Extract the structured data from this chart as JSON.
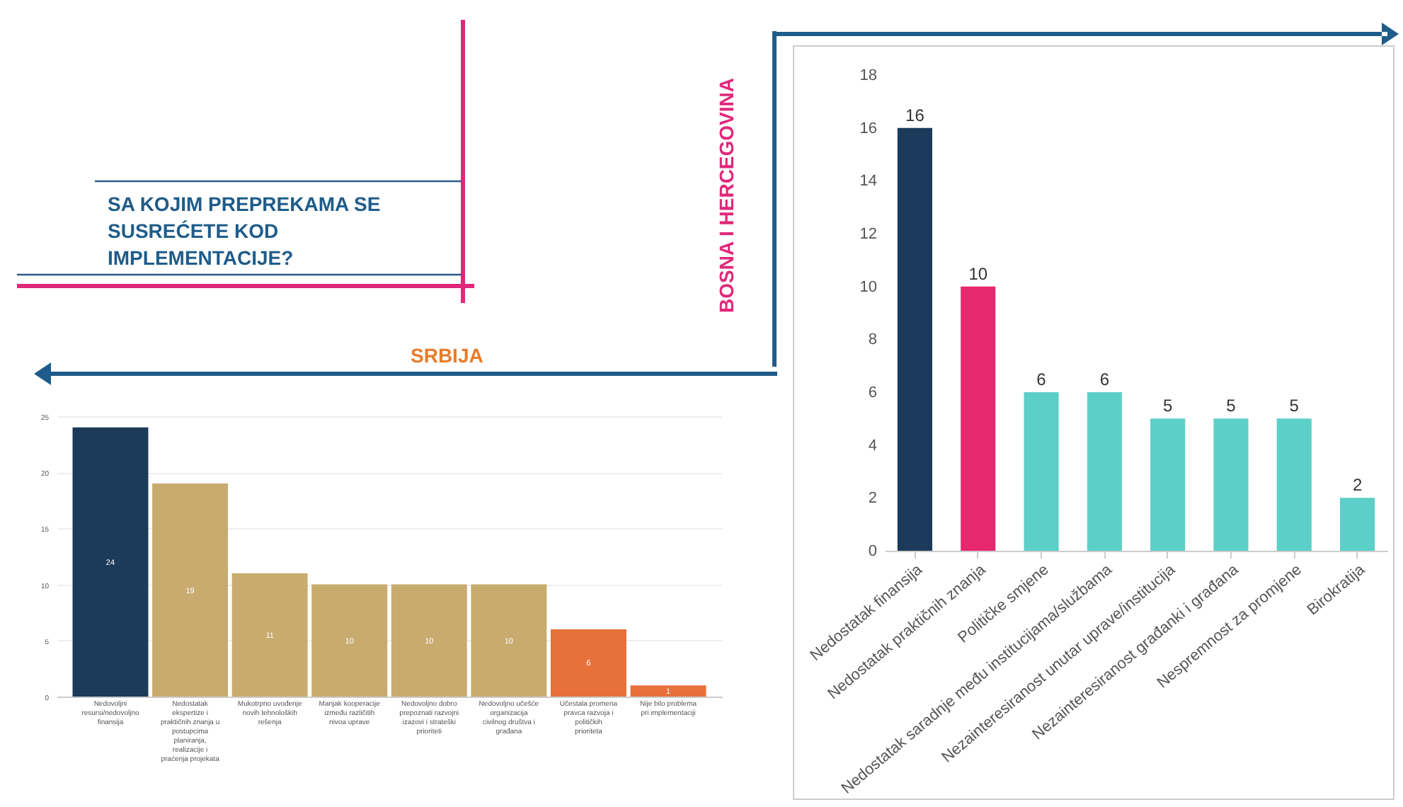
{
  "chart_data": [
    {
      "type": "other",
      "title": "SA KOJIM PREPREKAMA SE SUSREĆETE KOD IMPLEMENTACIJE?"
    },
    {
      "type": "bar",
      "title": "BOSNA I HERCEGOVINA",
      "categories": [
        "Nedostatak finansija",
        "Nedostatak praktičnih znanja",
        "Političke smjene",
        "Nedostatak saradnje među institucijama/službama",
        "Nezainteresiranost unutar uprave/institucija",
        "Nezainteresiranost građanki i građana",
        "Nespremnost za promjene",
        "Birokratija"
      ],
      "values": [
        16,
        10,
        6,
        6,
        5,
        5,
        5,
        2
      ],
      "colors": [
        "#1b3a5c",
        "#e8286e",
        "#5ccfc8",
        "#5ccfc8",
        "#5ccfc8",
        "#5ccfc8",
        "#5ccfc8",
        "#5ccfc8"
      ],
      "ylim": [
        0,
        18
      ],
      "yticks": [
        0,
        2,
        4,
        6,
        8,
        10,
        12,
        14,
        16,
        18
      ],
      "data_labels": true
    },
    {
      "type": "bar",
      "title": "SRBIJA",
      "categories": [
        "Nedovoljni resursi/nedovoljno finansija",
        "Nedostatak ekspertize i praktičnih znanja u postupcima planiranja, realizacije i praćenja projekata",
        "Mukotrpno uvođenje novih tehnoloških rešenja",
        "Manjak kooperacije između različitih nivoa uprave",
        "Nedovoljno dobro prepoznati razvojni izazovi i strateški prioriteti",
        "Nedovoljno učešće organizacija civilnog društva i građana",
        "Učestala promena pravca razvoja i političkih prioriteta",
        "Nije bilo problema pri implementaciji"
      ],
      "values": [
        24,
        19,
        11,
        10,
        10,
        10,
        6,
        1
      ],
      "colors": [
        "#1c3a5a",
        "#c8ab6e",
        "#c8ab6e",
        "#c8ab6e",
        "#c8ab6e",
        "#c8ab6e",
        "#e8703a",
        "#e8703a"
      ],
      "ylim": [
        0,
        25
      ],
      "yticks": [
        0,
        5,
        10,
        15,
        20,
        25
      ],
      "grid": "y",
      "data_labels": true
    }
  ]
}
